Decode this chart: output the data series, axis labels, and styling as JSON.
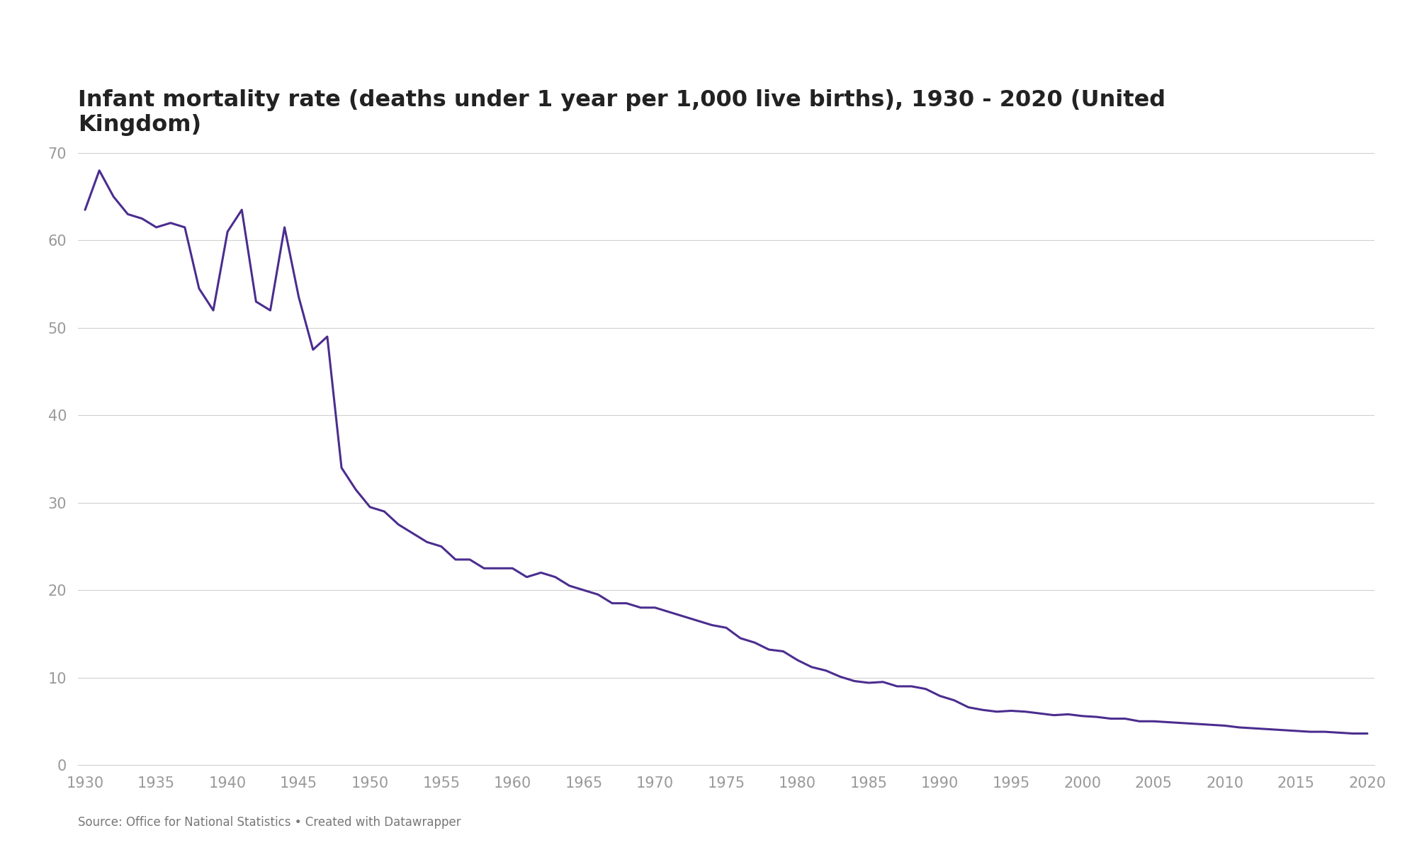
{
  "title": "Infant mortality rate (deaths under 1 year per 1,000 live births), 1930 - 2020 (United\nKingdom)",
  "source_text": "Source: Office for National Statistics • Created with Datawrapper",
  "line_color": "#4b2d8f",
  "background_color": "#ffffff",
  "grid_color": "#d0d0d0",
  "tick_color": "#999999",
  "ylim": [
    0,
    70
  ],
  "yticks": [
    0,
    10,
    20,
    30,
    40,
    50,
    60,
    70
  ],
  "xticks": [
    1930,
    1935,
    1940,
    1945,
    1950,
    1955,
    1960,
    1965,
    1970,
    1975,
    1980,
    1985,
    1990,
    1995,
    2000,
    2005,
    2010,
    2015,
    2020
  ],
  "xlim": [
    1929.5,
    2020.5
  ],
  "years": [
    1930,
    1931,
    1932,
    1933,
    1934,
    1935,
    1936,
    1937,
    1938,
    1939,
    1940,
    1941,
    1942,
    1943,
    1944,
    1945,
    1946,
    1947,
    1948,
    1949,
    1950,
    1951,
    1952,
    1953,
    1954,
    1955,
    1956,
    1957,
    1958,
    1959,
    1960,
    1961,
    1962,
    1963,
    1964,
    1965,
    1966,
    1967,
    1968,
    1969,
    1970,
    1971,
    1972,
    1973,
    1974,
    1975,
    1976,
    1977,
    1978,
    1979,
    1980,
    1981,
    1982,
    1983,
    1984,
    1985,
    1986,
    1987,
    1988,
    1989,
    1990,
    1991,
    1992,
    1993,
    1994,
    1995,
    1996,
    1997,
    1998,
    1999,
    2000,
    2001,
    2002,
    2003,
    2004,
    2005,
    2006,
    2007,
    2008,
    2009,
    2010,
    2011,
    2012,
    2013,
    2014,
    2015,
    2016,
    2017,
    2018,
    2019,
    2020
  ],
  "values": [
    63.5,
    68.0,
    65.0,
    63.0,
    62.5,
    61.5,
    62.0,
    61.5,
    54.5,
    52.0,
    61.0,
    63.5,
    53.0,
    52.0,
    61.5,
    53.5,
    47.5,
    49.0,
    34.0,
    31.5,
    29.5,
    29.0,
    27.5,
    26.5,
    25.5,
    25.0,
    23.5,
    23.5,
    22.5,
    22.5,
    22.5,
    21.5,
    22.0,
    21.5,
    20.5,
    20.0,
    19.5,
    18.5,
    18.5,
    18.0,
    18.0,
    17.5,
    17.0,
    16.5,
    16.0,
    15.7,
    14.5,
    14.0,
    13.2,
    13.0,
    12.0,
    11.2,
    10.8,
    10.1,
    9.6,
    9.4,
    9.5,
    9.0,
    9.0,
    8.7,
    7.9,
    7.4,
    6.6,
    6.3,
    6.1,
    6.2,
    6.1,
    5.9,
    5.7,
    5.8,
    5.6,
    5.5,
    5.3,
    5.3,
    5.0,
    5.0,
    4.9,
    4.8,
    4.7,
    4.6,
    4.5,
    4.3,
    4.2,
    4.1,
    4.0,
    3.9,
    3.8,
    3.8,
    3.7,
    3.6,
    3.6
  ]
}
